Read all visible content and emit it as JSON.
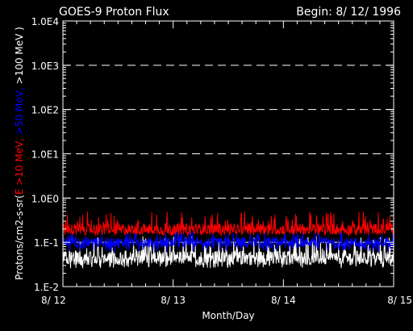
{
  "chart_data": {
    "type": "line",
    "title": "GOES-9 Proton Flux",
    "begin_label": "Begin: 8/ 12/ 1996",
    "xlabel": "Month/Day",
    "ylabel_parts": [
      {
        "text": "Protons/cm2-s-sr(",
        "color": "#ffffff"
      },
      {
        "text": "E >10 MeV, ",
        "color": "#ff0000"
      },
      {
        "text": ">50 MeV, ",
        "color": "#0000ff"
      },
      {
        "text": ">100 MeV )",
        "color": "#ffffff"
      }
    ],
    "x_ticks": [
      "8/ 12",
      "8/ 13",
      "8/ 14",
      "8/ 15"
    ],
    "x_range_days": [
      0,
      3
    ],
    "y_scale": "log",
    "y_range": [
      0.01,
      10000
    ],
    "y_ticks": [
      "1.0E4",
      "1.0E3",
      "1.0E2",
      "1.0E1",
      "1.0E0",
      "1.E-1",
      "1.E-2"
    ],
    "grid": "dashed horizontal at each decade",
    "series": [
      {
        "label_in_axis": "E >10 MeV",
        "color": "#ff0000",
        "typical": 0.2,
        "min": 0.14,
        "max": 0.5
      },
      {
        "label_in_axis": ">50 MeV",
        "color": "#0000ff",
        "typical": 0.1,
        "min": 0.06,
        "max": 0.18
      },
      {
        "label_in_axis": ">100 MeV",
        "color": "#ffffff",
        "typical": 0.045,
        "min": 0.026,
        "max": 0.14
      }
    ],
    "colors": {
      "background": "#000000",
      "axes": "#ffffff",
      "grid": "#ffffff"
    }
  }
}
